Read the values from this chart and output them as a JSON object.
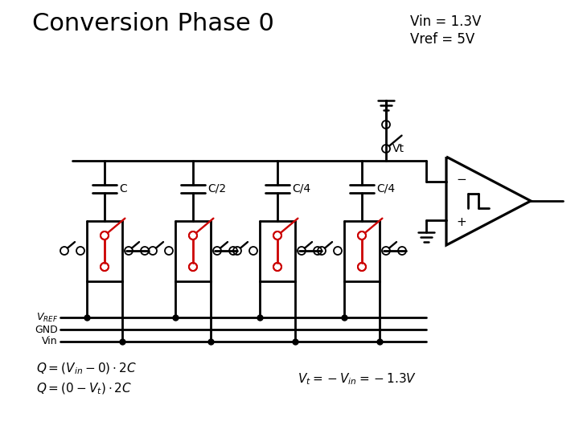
{
  "title": "Conversion Phase 0",
  "vin_vref_line1": "Vin = 1.3V",
  "vin_vref_line2": "Vref = 5V",
  "cap_labels": [
    "C",
    "C/2",
    "C/4",
    "C/4"
  ],
  "eq1": "$Q=(V_{in}-0)\\cdot 2C$",
  "eq2": "$Q=(0-V_t)\\cdot 2C$",
  "eq3": "$V_t = -V_{in} = -1.3V$",
  "vt_label": "Vt",
  "bg_color": "#ffffff",
  "lc": "#000000",
  "rc": "#cc0000",
  "lw": 2.0
}
